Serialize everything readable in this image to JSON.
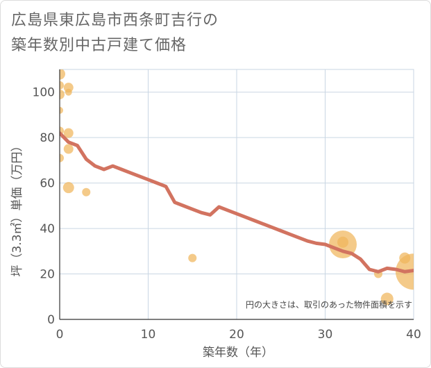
{
  "title_lines": [
    "広島県東広島市西条町吉行の",
    "築年数別中古戸建て価格"
  ],
  "chart_data": {
    "type": "scatter",
    "xlabel": "築年数（年）",
    "ylabel": "坪（3.3㎡）単価（万円）",
    "xlim": [
      0,
      40
    ],
    "ylim": [
      0,
      110
    ],
    "x_ticks": [
      "0",
      "10",
      "20",
      "30",
      "40"
    ],
    "y_ticks": [
      "0",
      "20",
      "40",
      "60",
      "80",
      "100"
    ],
    "note": "円の大きさは、取引のあった物件面積を示す",
    "grid": true,
    "colors": {
      "bubble": "#f0b55c",
      "line": "#d27360",
      "grid": "#c9d6e3"
    },
    "bubbles": [
      {
        "x": 0,
        "y": 108,
        "s": 8
      },
      {
        "x": 0,
        "y": 103,
        "s": 6
      },
      {
        "x": 0,
        "y": 99,
        "s": 7
      },
      {
        "x": 0,
        "y": 92,
        "s": 5
      },
      {
        "x": 0,
        "y": 83,
        "s": 6
      },
      {
        "x": 0,
        "y": 71,
        "s": 6
      },
      {
        "x": 1,
        "y": 102,
        "s": 7
      },
      {
        "x": 1,
        "y": 100,
        "s": 5
      },
      {
        "x": 1,
        "y": 82,
        "s": 7
      },
      {
        "x": 1,
        "y": 75,
        "s": 7
      },
      {
        "x": 1,
        "y": 58,
        "s": 8
      },
      {
        "x": 3,
        "y": 56,
        "s": 6
      },
      {
        "x": 15,
        "y": 27,
        "s": 6
      },
      {
        "x": 32,
        "y": 33,
        "s": 20
      },
      {
        "x": 32,
        "y": 34,
        "s": 8
      },
      {
        "x": 36,
        "y": 20,
        "s": 6
      },
      {
        "x": 37,
        "y": 9,
        "s": 9
      },
      {
        "x": 39,
        "y": 27,
        "s": 8
      },
      {
        "x": 40,
        "y": 21,
        "s": 26
      }
    ],
    "trend": {
      "x": [
        0,
        1,
        2,
        3,
        4,
        5,
        6,
        7,
        8,
        9,
        10,
        11,
        12,
        13,
        14,
        15,
        16,
        17,
        18,
        19,
        20,
        21,
        22,
        23,
        24,
        25,
        26,
        27,
        28,
        29,
        30,
        31,
        32,
        33,
        34,
        35,
        36,
        37,
        38,
        39,
        40
      ],
      "y": [
        82,
        78,
        76.5,
        70.5,
        67.5,
        66,
        67.5,
        66,
        64.5,
        63,
        61.5,
        60,
        58.5,
        51.5,
        50,
        48.5,
        47,
        46,
        49.5,
        48,
        46.5,
        45,
        43.5,
        42,
        40.5,
        39,
        37.5,
        36,
        34.5,
        33.5,
        33,
        31.5,
        30,
        29,
        26.5,
        22,
        21,
        22.5,
        22,
        21,
        21.5
      ]
    }
  }
}
